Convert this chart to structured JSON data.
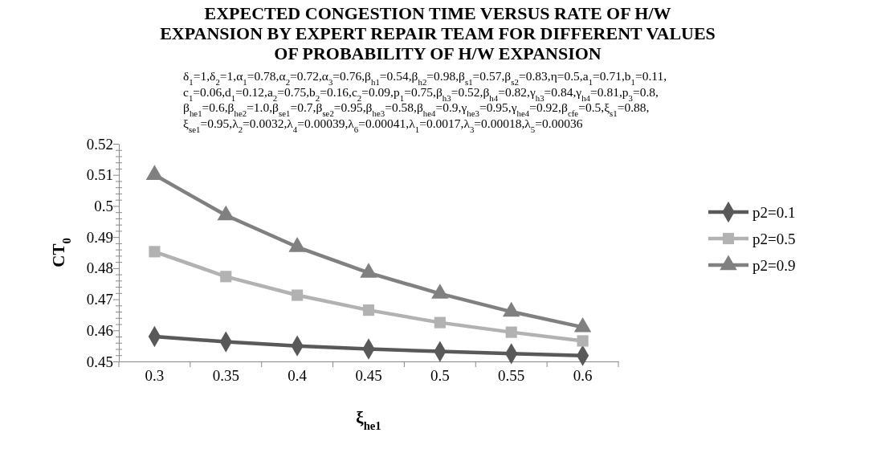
{
  "chart_data": {
    "type": "line",
    "title": "EXPECTED CONGESTION TIME VERSUS RATE OF  H/W EXPANSION BY EXPERT REPAIR TEAM FOR DIFFERENT VALUES OF PROBABILITY OF H/W EXPANSION",
    "annotations": [
      "δ$_{1}$=1,δ$_{2}$=1,α$_{1}$=0.78,α$_{2}$=0.72,α$_{3}$=0.76,β$_{h1}$=0.54,β$_{h2}$=0.98,β$_{s1}$=0.57,β$_{s2}$=0.83,η=0.5,a$_{1}$=0.71,b$_{1}$=0.11,",
      "c$_{1}$=0.06,d$_{1}$=0.12,a$_{2}$=0.75,b$_{2}$=0.16,c$_{2}$=0.09,p$_{1}$=0.75,β$_{h3}$=0.52,β$_{h4}$=0.82,γ$_{h3}$=0.84,γ$_{h4}$=0.81,p$_{3}$=0.8,",
      "β$_{he1}$=0.6,β$_{he2}$=1.0,β$_{se1}$=0.7,β$_{se2}$=0.95,β$_{he3}$=0.58,β$_{he4}$=0.9,γ$_{he3}$=0.95,γ$_{he4}$=0.92,β$_{cfe}$=0.5,ξ$_{s1}$=0.88,",
      "ξ$_{se1}$=0.95,λ$_{2}$=0.0032,λ$_{4}$=0.00039,λ$_{6}$=0.00041,λ$_{1}$=0.0017,λ$_{3}$=0.00018,λ$_{5}$=0.00036"
    ],
    "xlabel": "ξ$_{he1}$",
    "ylabel": "CT$_{0}$",
    "categories": [
      "0.3",
      "0.35",
      "0.4",
      "0.45",
      "0.5",
      "0.55",
      "0.6"
    ],
    "series": [
      {
        "name": "p2=0.1",
        "color": "#595959",
        "marker": "diamond",
        "values": [
          0.458,
          0.4563,
          0.455,
          0.454,
          0.4532,
          0.4525,
          0.4519
        ]
      },
      {
        "name": "p2=0.5",
        "color": "#b2b2b2",
        "marker": "square",
        "values": [
          0.4853,
          0.4773,
          0.4713,
          0.4665,
          0.4625,
          0.4594,
          0.4566
        ]
      },
      {
        "name": "p2=0.9",
        "color": "#808080",
        "marker": "triangle",
        "values": [
          0.51,
          0.497,
          0.4868,
          0.4785,
          0.4718,
          0.466,
          0.461
        ]
      }
    ],
    "ylim": [
      0.45,
      0.52
    ],
    "yticks": [
      0.45,
      {
        "value": 0.452,
        "label": null
      },
      {
        "value": 0.454,
        "label": null
      },
      {
        "value": 0.456,
        "label": null
      },
      {
        "value": 0.458,
        "label": null
      },
      0.46,
      {
        "value": 0.462,
        "label": null
      },
      {
        "value": 0.464,
        "label": null
      },
      {
        "value": 0.466,
        "label": null
      },
      {
        "value": 0.468,
        "label": null
      },
      0.47,
      {
        "value": 0.472,
        "label": null
      },
      {
        "value": 0.474,
        "label": null
      },
      {
        "value": 0.476,
        "label": null
      },
      {
        "value": 0.478,
        "label": null
      },
      0.48,
      {
        "value": 0.482,
        "label": null
      },
      {
        "value": 0.484,
        "label": null
      },
      {
        "value": 0.486,
        "label": null
      },
      {
        "value": 0.488,
        "label": null
      },
      0.49,
      {
        "value": 0.492,
        "label": null
      },
      {
        "value": 0.494,
        "label": null
      },
      {
        "value": 0.496,
        "label": null
      },
      {
        "value": 0.498,
        "label": null
      },
      0.5,
      {
        "value": 0.502,
        "label": null
      },
      {
        "value": 0.504,
        "label": null
      },
      {
        "value": 0.506,
        "label": null
      },
      {
        "value": 0.508,
        "label": null
      },
      0.51,
      {
        "value": 0.512,
        "label": null
      },
      {
        "value": 0.514,
        "label": null
      },
      {
        "value": 0.516,
        "label": null
      },
      {
        "value": 0.518,
        "label": null
      },
      0.52
    ],
    "grid": false,
    "legend": "right",
    "line_style": "solid"
  }
}
